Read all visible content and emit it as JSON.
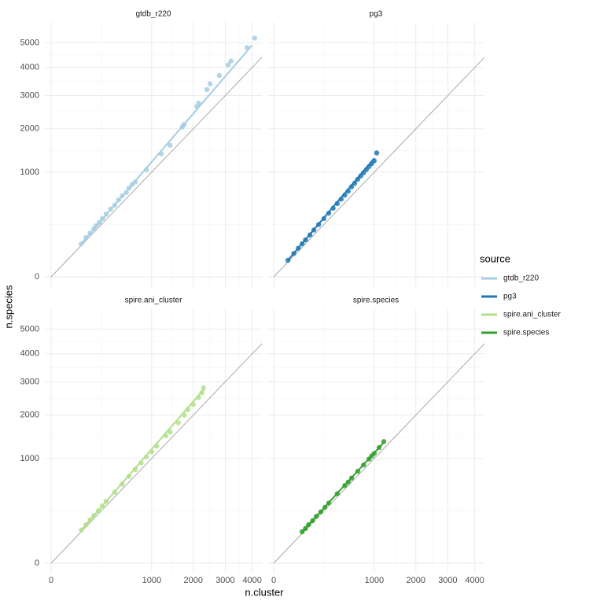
{
  "chart_data": {
    "type": "scatter",
    "scale": "sqrt",
    "xlabel": "n.cluster",
    "ylabel": "n.species",
    "legend_title": "source",
    "xlim": [
      0,
      4200
    ],
    "ylim": [
      0,
      5600
    ],
    "xticks": [
      0,
      1000,
      2000,
      3000,
      4000
    ],
    "yticks": [
      0,
      1000,
      2000,
      3000,
      4000,
      5000
    ],
    "minor_xticks": [
      250,
      1457,
      2488,
      3493
    ],
    "minor_yticks": [
      250,
      1457,
      2488,
      3493,
      4495
    ],
    "identity_color": "#aaaaaa",
    "series": [
      {
        "name": "gtdb_r220",
        "color": "#a6cee3",
        "x": [
          90,
          120,
          150,
          180,
          200,
          230,
          260,
          300,
          350,
          400,
          450,
          500,
          560,
          600,
          650,
          700,
          900,
          1200,
          1400,
          1700,
          1750,
          2100,
          2150,
          2400,
          2500,
          2800,
          3100,
          3200,
          3800,
          4100
        ],
        "values": [
          100,
          140,
          175,
          210,
          240,
          270,
          310,
          360,
          420,
          470,
          540,
          600,
          650,
          720,
          780,
          820,
          1050,
          1380,
          1580,
          2050,
          2120,
          2650,
          2750,
          3200,
          3400,
          3700,
          4100,
          4250,
          4800,
          5200
        ],
        "fit_x": [
          90,
          4000
        ],
        "fit_values": [
          100,
          4900
        ]
      },
      {
        "name": "pg3",
        "color": "#1f78b4",
        "x": [
          20,
          40,
          60,
          80,
          100,
          130,
          160,
          200,
          250,
          300,
          350,
          400,
          450,
          500,
          550,
          600,
          650,
          700,
          750,
          800,
          850,
          900,
          950,
          1000,
          1050
        ],
        "values": [
          25,
          50,
          75,
          100,
          125,
          160,
          200,
          250,
          310,
          370,
          430,
          490,
          550,
          610,
          670,
          740,
          800,
          870,
          930,
          990,
          1050,
          1110,
          1170,
          1230,
          1400
        ],
        "fit_x": [
          20,
          1000
        ],
        "fit_values": [
          25,
          1280
        ]
      },
      {
        "name": "spire.ani_cluster",
        "color": "#b2df8a",
        "x": [
          90,
          120,
          150,
          180,
          220,
          260,
          300,
          400,
          500,
          600,
          700,
          800,
          900,
          1000,
          1100,
          1300,
          1400,
          1600,
          1750,
          1850,
          2000,
          2150,
          2250,
          2300
        ],
        "values": [
          100,
          135,
          170,
          205,
          250,
          300,
          350,
          460,
          570,
          690,
          800,
          920,
          1030,
          1130,
          1250,
          1480,
          1570,
          1800,
          2000,
          2150,
          2300,
          2500,
          2650,
          2800
        ],
        "fit_x": [
          90,
          2300
        ],
        "fit_values": [
          100,
          2750
        ]
      },
      {
        "name": "spire.species",
        "color": "#33a02c",
        "x": [
          80,
          100,
          120,
          150,
          180,
          220,
          260,
          300,
          400,
          500,
          550,
          600,
          700,
          800,
          900,
          950,
          1000,
          1100,
          1200
        ],
        "values": [
          90,
          110,
          135,
          165,
          200,
          240,
          285,
          330,
          440,
          550,
          600,
          660,
          770,
          880,
          990,
          1050,
          1100,
          1220,
          1350
        ],
        "fit_x": [
          80,
          1200
        ],
        "fit_values": [
          90,
          1330
        ]
      }
    ]
  }
}
